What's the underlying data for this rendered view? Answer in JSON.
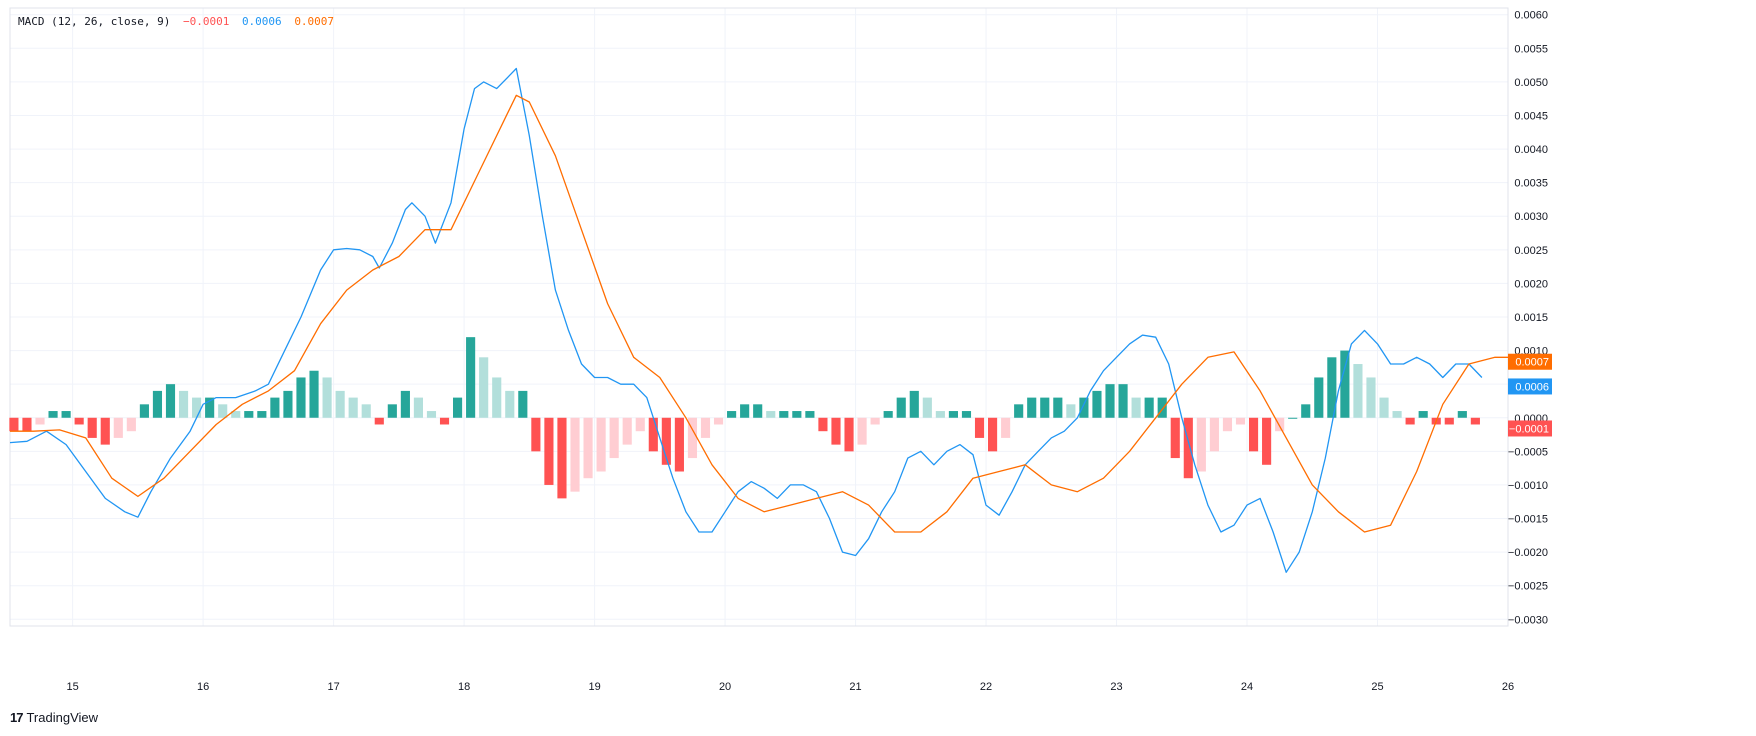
{
  "legend": {
    "study": "MACD (12, 26, close, 9)",
    "histogram_value": "−0.0001",
    "macd_value": "0.0006",
    "signal_value": "0.0007"
  },
  "brand": {
    "logo": "17",
    "name": "TradingView"
  },
  "colors": {
    "macd": "#2196f3",
    "signal": "#ff6d00",
    "hist_pos_strong": "#26a69a",
    "hist_pos_weak": "#b2dfdb",
    "hist_neg_strong": "#ff5252",
    "hist_neg_weak": "#ffcdd2",
    "grid": "#f0f3fa"
  },
  "chart_data": {
    "type": "line",
    "x_ticks": [
      "15",
      "16",
      "17",
      "18",
      "19",
      "20",
      "21",
      "22",
      "23",
      "24",
      "25",
      "26"
    ],
    "y_ticks": [
      "0.0060",
      "0.0055",
      "0.0050",
      "0.0045",
      "0.0040",
      "0.0035",
      "0.0030",
      "0.0025",
      "0.0020",
      "0.0015",
      "0.0010",
      "0.0005",
      "0.0000",
      "−0.0005",
      "−0.0010",
      "−0.0015",
      "−0.0020",
      "−0.0025",
      "−0.0030"
    ],
    "ylim": [
      -0.0031,
      0.0061
    ],
    "xlim": [
      14.52,
      26.0
    ],
    "grid": true,
    "last_value_labels": {
      "signal": "0.0007",
      "macd": "0.0006",
      "histogram": "−0.0001"
    },
    "series": [
      {
        "name": "MACD",
        "points": [
          [
            14.52,
            -0.00037
          ],
          [
            14.65,
            -0.00035
          ],
          [
            14.8,
            -0.0002
          ],
          [
            14.95,
            -0.0004
          ],
          [
            15.1,
            -0.0008
          ],
          [
            15.25,
            -0.0012
          ],
          [
            15.4,
            -0.0014
          ],
          [
            15.5,
            -0.00148
          ],
          [
            15.6,
            -0.0011
          ],
          [
            15.75,
            -0.0006
          ],
          [
            15.9,
            -0.0002
          ],
          [
            16.0,
            0.0002
          ],
          [
            16.1,
            0.0003
          ],
          [
            16.25,
            0.0003
          ],
          [
            16.4,
            0.0004
          ],
          [
            16.5,
            0.0005
          ],
          [
            16.6,
            0.0009
          ],
          [
            16.75,
            0.0015
          ],
          [
            16.9,
            0.0022
          ],
          [
            17.0,
            0.0025
          ],
          [
            17.1,
            0.00252
          ],
          [
            17.2,
            0.0025
          ],
          [
            17.3,
            0.0024
          ],
          [
            17.35,
            0.00223
          ],
          [
            17.45,
            0.0026
          ],
          [
            17.55,
            0.0031
          ],
          [
            17.6,
            0.0032
          ],
          [
            17.7,
            0.003
          ],
          [
            17.78,
            0.0026
          ],
          [
            17.9,
            0.0032
          ],
          [
            18.0,
            0.0043
          ],
          [
            18.08,
            0.0049
          ],
          [
            18.15,
            0.005
          ],
          [
            18.25,
            0.0049
          ],
          [
            18.35,
            0.0051
          ],
          [
            18.4,
            0.0052
          ],
          [
            18.5,
            0.0042
          ],
          [
            18.6,
            0.003
          ],
          [
            18.7,
            0.0019
          ],
          [
            18.8,
            0.0013
          ],
          [
            18.9,
            0.0008
          ],
          [
            19.0,
            0.0006
          ],
          [
            19.1,
            0.0006
          ],
          [
            19.2,
            0.0005
          ],
          [
            19.3,
            0.0005
          ],
          [
            19.4,
            0.0003
          ],
          [
            19.5,
            -0.0003
          ],
          [
            19.6,
            -0.0009
          ],
          [
            19.7,
            -0.0014
          ],
          [
            19.8,
            -0.0017
          ],
          [
            19.9,
            -0.0017
          ],
          [
            20.0,
            -0.0014
          ],
          [
            20.1,
            -0.0011
          ],
          [
            20.2,
            -0.00095
          ],
          [
            20.3,
            -0.00105
          ],
          [
            20.4,
            -0.0012
          ],
          [
            20.5,
            -0.001
          ],
          [
            20.6,
            -0.001
          ],
          [
            20.7,
            -0.0011
          ],
          [
            20.8,
            -0.0015
          ],
          [
            20.9,
            -0.002
          ],
          [
            21.0,
            -0.00205
          ],
          [
            21.1,
            -0.0018
          ],
          [
            21.2,
            -0.0014
          ],
          [
            21.3,
            -0.0011
          ],
          [
            21.4,
            -0.0006
          ],
          [
            21.5,
            -0.0005
          ],
          [
            21.6,
            -0.0007
          ],
          [
            21.7,
            -0.0005
          ],
          [
            21.8,
            -0.0004
          ],
          [
            21.9,
            -0.00055
          ],
          [
            22.0,
            -0.0013
          ],
          [
            22.1,
            -0.00145
          ],
          [
            22.2,
            -0.0011
          ],
          [
            22.3,
            -0.0007
          ],
          [
            22.4,
            -0.0005
          ],
          [
            22.5,
            -0.0003
          ],
          [
            22.6,
            -0.0002
          ],
          [
            22.7,
            0.0
          ],
          [
            22.8,
            0.0004
          ],
          [
            22.9,
            0.0007
          ],
          [
            23.0,
            0.0009
          ],
          [
            23.1,
            0.0011
          ],
          [
            23.2,
            0.00123
          ],
          [
            23.3,
            0.0012
          ],
          [
            23.4,
            0.0008
          ],
          [
            23.5,
            0.0
          ],
          [
            23.6,
            -0.0007
          ],
          [
            23.7,
            -0.0013
          ],
          [
            23.8,
            -0.0017
          ],
          [
            23.9,
            -0.0016
          ],
          [
            24.0,
            -0.0013
          ],
          [
            24.1,
            -0.0012
          ],
          [
            24.2,
            -0.0017
          ],
          [
            24.3,
            -0.0023
          ],
          [
            24.4,
            -0.002
          ],
          [
            24.5,
            -0.0014
          ],
          [
            24.6,
            -0.0006
          ],
          [
            24.7,
            0.0004
          ],
          [
            24.8,
            0.0011
          ],
          [
            24.9,
            0.0013
          ],
          [
            25.0,
            0.0011
          ],
          [
            25.1,
            0.0008
          ],
          [
            25.2,
            0.0008
          ],
          [
            25.3,
            0.0009
          ],
          [
            25.4,
            0.0008
          ],
          [
            25.5,
            0.0006
          ],
          [
            25.6,
            0.0008
          ],
          [
            25.7,
            0.0008
          ],
          [
            25.8,
            0.0006
          ]
        ]
      },
      {
        "name": "Signal",
        "points": [
          [
            14.52,
            -0.0002
          ],
          [
            14.7,
            -0.0002
          ],
          [
            14.9,
            -0.00018
          ],
          [
            15.1,
            -0.0003
          ],
          [
            15.3,
            -0.0009
          ],
          [
            15.5,
            -0.00117
          ],
          [
            15.7,
            -0.0009
          ],
          [
            15.9,
            -0.0005
          ],
          [
            16.1,
            -0.0001
          ],
          [
            16.3,
            0.0002
          ],
          [
            16.5,
            0.0004
          ],
          [
            16.7,
            0.0007
          ],
          [
            16.9,
            0.0014
          ],
          [
            17.1,
            0.0019
          ],
          [
            17.3,
            0.0022
          ],
          [
            17.5,
            0.0024
          ],
          [
            17.7,
            0.0028
          ],
          [
            17.9,
            0.0028
          ],
          [
            18.1,
            0.0036
          ],
          [
            18.3,
            0.0044
          ],
          [
            18.4,
            0.0048
          ],
          [
            18.5,
            0.0047
          ],
          [
            18.7,
            0.0039
          ],
          [
            18.9,
            0.0028
          ],
          [
            19.1,
            0.0017
          ],
          [
            19.3,
            0.0009
          ],
          [
            19.5,
            0.0006
          ],
          [
            19.7,
            0.0
          ],
          [
            19.9,
            -0.0007
          ],
          [
            20.1,
            -0.0012
          ],
          [
            20.3,
            -0.0014
          ],
          [
            20.5,
            -0.0013
          ],
          [
            20.7,
            -0.0012
          ],
          [
            20.9,
            -0.0011
          ],
          [
            21.1,
            -0.0013
          ],
          [
            21.3,
            -0.0017
          ],
          [
            21.5,
            -0.0017
          ],
          [
            21.7,
            -0.0014
          ],
          [
            21.9,
            -0.0009
          ],
          [
            22.1,
            -0.0008
          ],
          [
            22.3,
            -0.0007
          ],
          [
            22.5,
            -0.001
          ],
          [
            22.7,
            -0.0011
          ],
          [
            22.9,
            -0.0009
          ],
          [
            23.1,
            -0.0005
          ],
          [
            23.3,
            0.0
          ],
          [
            23.5,
            0.0005
          ],
          [
            23.7,
            0.0009
          ],
          [
            23.9,
            0.00098
          ],
          [
            24.1,
            0.0004
          ],
          [
            24.3,
            -0.0003
          ],
          [
            24.5,
            -0.001
          ],
          [
            24.7,
            -0.0014
          ],
          [
            24.9,
            -0.0017
          ],
          [
            25.1,
            -0.0016
          ],
          [
            25.3,
            -0.0008
          ],
          [
            25.5,
            0.0002
          ],
          [
            25.7,
            0.0008
          ],
          [
            25.9,
            0.0009
          ],
          [
            26.0,
            0.0009
          ]
        ]
      },
      {
        "name": "Histogram",
        "points": [
          [
            14.55,
            -0.0002
          ],
          [
            14.65,
            -0.0002
          ],
          [
            14.75,
            -0.0001
          ],
          [
            14.85,
            0.0001
          ],
          [
            14.95,
            0.0001
          ],
          [
            15.05,
            -0.0001
          ],
          [
            15.15,
            -0.0003
          ],
          [
            15.25,
            -0.0004
          ],
          [
            15.35,
            -0.0003
          ],
          [
            15.45,
            -0.0002
          ],
          [
            15.55,
            0.0002
          ],
          [
            15.65,
            0.0004
          ],
          [
            15.75,
            0.0005
          ],
          [
            15.85,
            0.0004
          ],
          [
            15.95,
            0.0003
          ],
          [
            16.05,
            0.0003
          ],
          [
            16.15,
            0.0002
          ],
          [
            16.25,
            0.0001
          ],
          [
            16.35,
            0.0001
          ],
          [
            16.45,
            0.0001
          ],
          [
            16.55,
            0.0003
          ],
          [
            16.65,
            0.0004
          ],
          [
            16.75,
            0.0006
          ],
          [
            16.85,
            0.0007
          ],
          [
            16.95,
            0.0006
          ],
          [
            17.05,
            0.0004
          ],
          [
            17.15,
            0.0003
          ],
          [
            17.25,
            0.0002
          ],
          [
            17.35,
            -0.0001
          ],
          [
            17.45,
            0.0002
          ],
          [
            17.55,
            0.0004
          ],
          [
            17.65,
            0.0003
          ],
          [
            17.75,
            0.0001
          ],
          [
            17.85,
            -0.0001
          ],
          [
            17.95,
            0.0003
          ],
          [
            18.05,
            0.0012
          ],
          [
            18.15,
            0.0009
          ],
          [
            18.25,
            0.0006
          ],
          [
            18.35,
            0.0004
          ],
          [
            18.45,
            0.0004
          ],
          [
            18.55,
            -0.0005
          ],
          [
            18.65,
            -0.001
          ],
          [
            18.75,
            -0.0012
          ],
          [
            18.85,
            -0.0011
          ],
          [
            18.95,
            -0.0009
          ],
          [
            19.05,
            -0.0008
          ],
          [
            19.15,
            -0.0006
          ],
          [
            19.25,
            -0.0004
          ],
          [
            19.35,
            -0.0002
          ],
          [
            19.45,
            -0.0005
          ],
          [
            19.55,
            -0.0007
          ],
          [
            19.65,
            -0.0008
          ],
          [
            19.75,
            -0.0006
          ],
          [
            19.85,
            -0.0003
          ],
          [
            19.95,
            -0.0001
          ],
          [
            20.05,
            0.0001
          ],
          [
            20.15,
            0.0002
          ],
          [
            20.25,
            0.0002
          ],
          [
            20.35,
            0.0001
          ],
          [
            20.45,
            0.0001
          ],
          [
            20.55,
            0.0001
          ],
          [
            20.65,
            0.0001
          ],
          [
            20.75,
            -0.0002
          ],
          [
            20.85,
            -0.0004
          ],
          [
            20.95,
            -0.0005
          ],
          [
            21.05,
            -0.0004
          ],
          [
            21.15,
            -0.0001
          ],
          [
            21.25,
            0.0001
          ],
          [
            21.35,
            0.0003
          ],
          [
            21.45,
            0.0004
          ],
          [
            21.55,
            0.0003
          ],
          [
            21.65,
            0.0001
          ],
          [
            21.75,
            0.0001
          ],
          [
            21.85,
            0.0001
          ],
          [
            21.95,
            -0.0003
          ],
          [
            22.05,
            -0.0005
          ],
          [
            22.15,
            -0.0003
          ],
          [
            22.25,
            0.0002
          ],
          [
            22.35,
            0.0003
          ],
          [
            22.45,
            0.0003
          ],
          [
            22.55,
            0.0003
          ],
          [
            22.65,
            0.0002
          ],
          [
            22.75,
            0.0003
          ],
          [
            22.85,
            0.0004
          ],
          [
            22.95,
            0.0005
          ],
          [
            23.05,
            0.0005
          ],
          [
            23.15,
            0.0003
          ],
          [
            23.25,
            0.0003
          ],
          [
            23.35,
            0.0003
          ],
          [
            23.45,
            -0.0006
          ],
          [
            23.55,
            -0.0009
          ],
          [
            23.65,
            -0.0008
          ],
          [
            23.75,
            -0.0005
          ],
          [
            23.85,
            -0.0002
          ],
          [
            23.95,
            -0.0001
          ],
          [
            24.05,
            -0.0005
          ],
          [
            24.15,
            -0.0007
          ],
          [
            24.25,
            -0.0002
          ],
          [
            24.35,
            0.0
          ],
          [
            24.45,
            0.0002
          ],
          [
            24.55,
            0.0006
          ],
          [
            24.65,
            0.0009
          ],
          [
            24.75,
            0.001
          ],
          [
            24.85,
            0.0008
          ],
          [
            24.95,
            0.0006
          ],
          [
            25.05,
            0.0003
          ],
          [
            25.15,
            0.0001
          ],
          [
            25.25,
            -0.0001
          ],
          [
            25.35,
            0.0001
          ],
          [
            25.45,
            -0.0001
          ],
          [
            25.55,
            -0.0001
          ],
          [
            25.65,
            0.0001
          ],
          [
            25.75,
            -0.0001
          ]
        ]
      }
    ]
  }
}
